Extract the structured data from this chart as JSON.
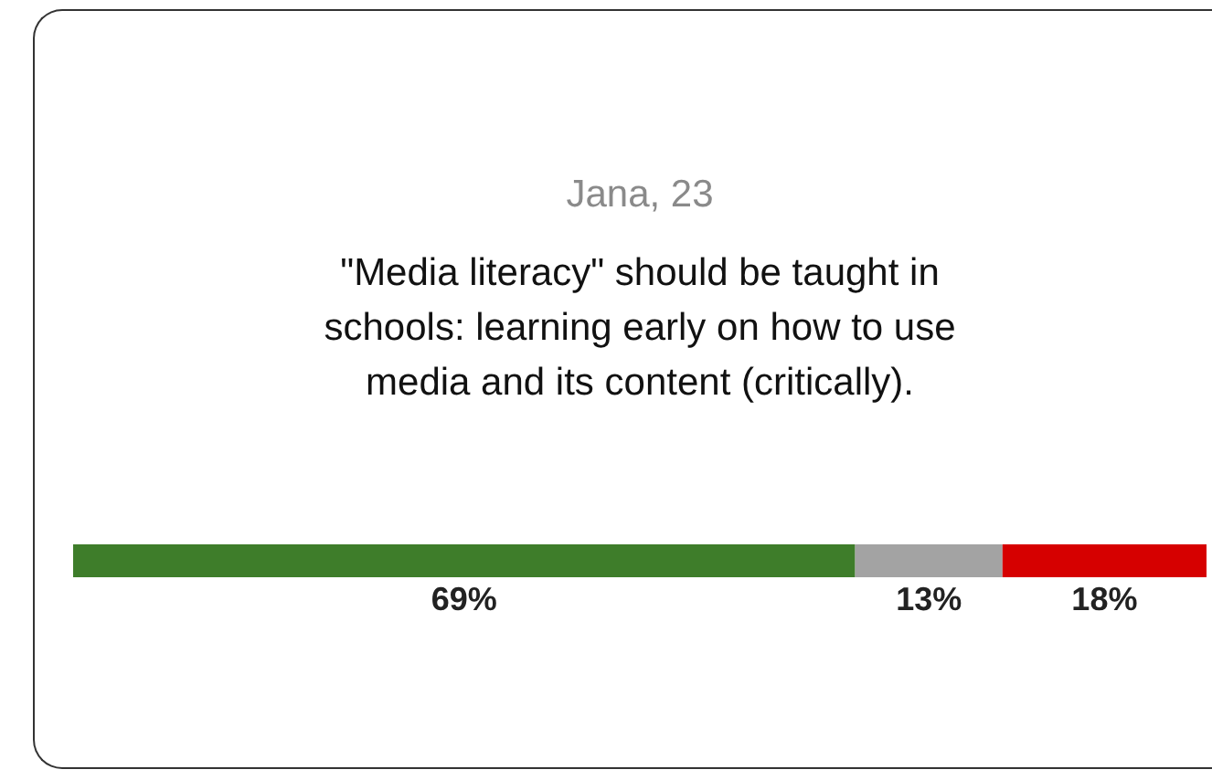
{
  "chart_data": {
    "type": "bar",
    "orientation": "horizontal",
    "stacked": true,
    "title": "Jana, 23",
    "subtitle": "\"Media literacy\" should be taught in schools: learning early on how to use media and its content (critically).",
    "categories": [
      null
    ],
    "series": [
      {
        "color": "#3e7d2a",
        "values": [
          69
        ],
        "value_labels": [
          "69%"
        ]
      },
      {
        "color": "#a3a3a3",
        "values": [
          13
        ],
        "value_labels": [
          "13%"
        ]
      },
      {
        "color": "#d60000",
        "values": [
          18
        ],
        "value_labels": [
          "18%"
        ]
      }
    ]
  }
}
